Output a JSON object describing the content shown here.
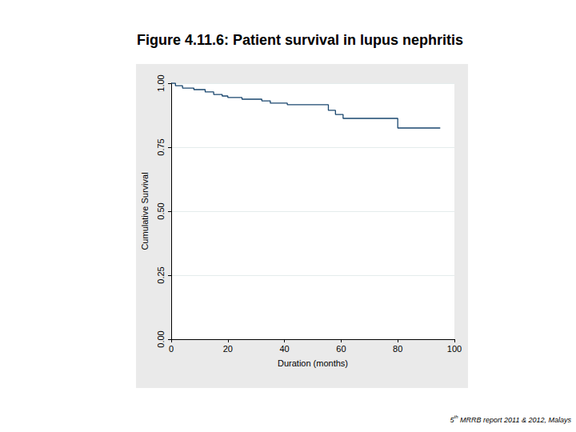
{
  "chart_data": {
    "type": "step",
    "title": "Figure 4.11.6: Patient survival in lupus nephritis",
    "x_label": "Duration (months)",
    "y_label": "Cumulative Survival",
    "annotations": [
      "5th MRRB report 2011 & 2012, Malays"
    ],
    "x": [
      0,
      1.5,
      4,
      8,
      12,
      15,
      18,
      20,
      25,
      32,
      35,
      41,
      55.5,
      58,
      60.7,
      80,
      95
    ],
    "values": [
      1.0,
      0.99,
      0.981,
      0.975,
      0.966,
      0.956,
      0.95,
      0.944,
      0.9375,
      0.931,
      0.922,
      0.916,
      0.894,
      0.878,
      0.8625,
      0.825,
      0.825
    ],
    "color": "#1a476f",
    "line_style": "solid",
    "xlim": [
      0,
      100
    ],
    "xticks": [
      0,
      20,
      40,
      60,
      80,
      100
    ],
    "ylim": [
      0,
      1
    ],
    "yticks": [
      {
        "value": 0,
        "label": "0.00"
      },
      {
        "value": 0.25,
        "label": "0.25"
      },
      {
        "value": 0.5,
        "label": "0.50"
      },
      {
        "value": 0.75,
        "label": "0.75"
      },
      {
        "value": 1,
        "label": "1.00"
      }
    ],
    "grid": true
  }
}
